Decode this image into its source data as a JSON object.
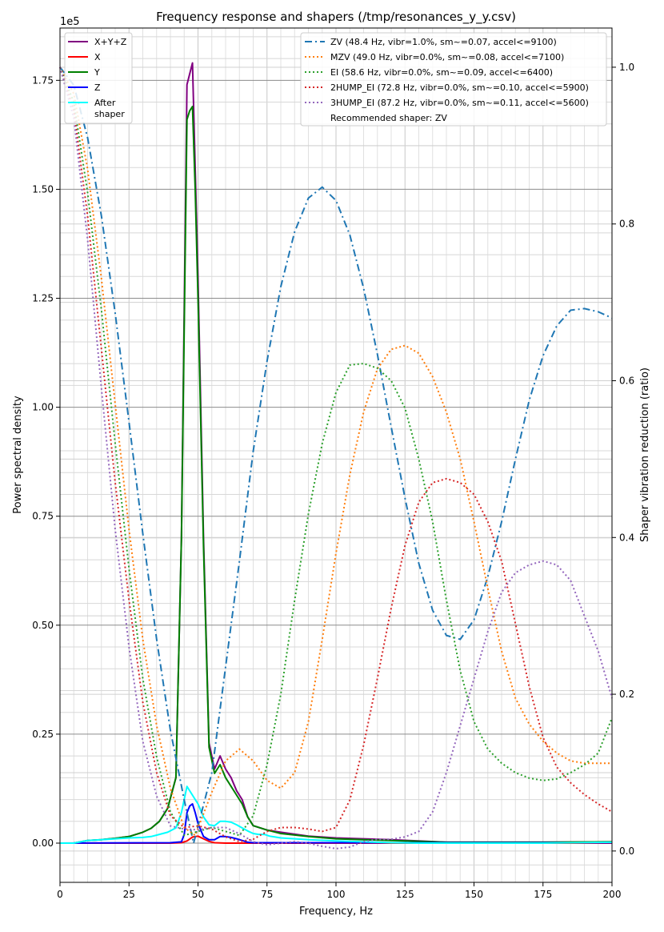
{
  "chart_data": {
    "type": "line",
    "title": "Frequency response and shapers (/tmp/resonances_y_y.csv)",
    "xlabel": "Frequency, Hz",
    "ylabel_left": "Power spectral density",
    "ylabel_right": "Shaper vibration reduction (ratio)",
    "left_scale_label": "1e5",
    "xlim": [
      0,
      200
    ],
    "ylim_left": [
      -0.09,
      1.87
    ],
    "ylim_right": [
      -0.04,
      1.05
    ],
    "x_ticks": [
      0,
      25,
      50,
      75,
      100,
      125,
      150,
      175,
      200
    ],
    "x_tick_labels": [
      "0",
      "25",
      "50",
      "75",
      "100",
      "125",
      "150",
      "175",
      "200"
    ],
    "y_left_ticks": [
      0,
      0.25,
      0.5,
      0.75,
      1.0,
      1.25,
      1.5,
      1.75
    ],
    "y_left_tick_labels": [
      "0.00",
      "0.25",
      "0.50",
      "0.75",
      "1.00",
      "1.25",
      "1.50",
      "1.75"
    ],
    "y_right_ticks": [
      0,
      0.2,
      0.4,
      0.6,
      0.8,
      1.0
    ],
    "y_right_tick_labels": [
      "0.0",
      "0.2",
      "0.4",
      "0.6",
      "0.8",
      "1.0"
    ],
    "grid": true,
    "legend_left": {
      "placement": "top-left",
      "entries": [
        {
          "label": "X+Y+Z",
          "color": "#800080"
        },
        {
          "label": "X",
          "color": "#ff0000"
        },
        {
          "label": "Y",
          "color": "#008000"
        },
        {
          "label": "Z",
          "color": "#0000ff"
        },
        {
          "label": "After\nshaper",
          "color": "#00ffff"
        }
      ]
    },
    "legend_right": {
      "placement": "top-right",
      "entries": [
        {
          "label": "ZV (48.4 Hz, vibr=1.0%, sm~=0.07, accel<=9100)",
          "color": "#1f77b4",
          "dash": "dashdot"
        },
        {
          "label": "MZV (49.0 Hz, vibr=0.0%, sm~=0.08, accel<=7100)",
          "color": "#ff7f0e",
          "dash": "dotted"
        },
        {
          "label": "EI (58.6 Hz, vibr=0.0%, sm~=0.09, accel<=6400)",
          "color": "#2ca02c",
          "dash": "dotted"
        },
        {
          "label": "2HUMP_EI (72.8 Hz, vibr=0.0%, sm~=0.10, accel<=5900)",
          "color": "#d62728",
          "dash": "dotted"
        },
        {
          "label": "3HUMP_EI (87.2 Hz, vibr=0.0%, sm~=0.11, accel<=5600)",
          "color": "#9467bd",
          "dash": "dotted"
        }
      ],
      "note": "Recommended shaper: ZV"
    },
    "psd_series": [
      {
        "name": "X+Y+Z",
        "color": "#800080",
        "x": [
          0,
          5,
          10,
          15,
          20,
          25,
          30,
          33,
          36,
          39,
          42,
          44,
          46,
          48,
          50,
          52,
          54,
          56,
          58,
          60,
          62,
          64,
          66,
          68,
          70,
          75,
          80,
          90,
          100,
          110,
          120,
          130,
          140,
          150,
          175,
          200
        ],
        "values": [
          0.0,
          0.0,
          0.006,
          0.008,
          0.011,
          0.015,
          0.025,
          0.034,
          0.05,
          0.08,
          0.15,
          0.7,
          1.74,
          1.79,
          1.3,
          0.7,
          0.23,
          0.17,
          0.2,
          0.17,
          0.15,
          0.12,
          0.1,
          0.06,
          0.04,
          0.03,
          0.025,
          0.016,
          0.012,
          0.01,
          0.008,
          0.005,
          0.002,
          0.002,
          0.002,
          0.003
        ]
      },
      {
        "name": "X",
        "color": "#ff0000",
        "x": [
          0,
          40,
          44,
          46,
          48,
          50,
          52,
          54,
          56,
          60,
          65,
          70,
          200
        ],
        "values": [
          0.0,
          0.0,
          0.001,
          0.005,
          0.014,
          0.016,
          0.01,
          0.004,
          0.001,
          0.0,
          0.0,
          0.0,
          0.0
        ]
      },
      {
        "name": "Y",
        "color": "#008000",
        "x": [
          0,
          5,
          10,
          15,
          20,
          25,
          30,
          33,
          36,
          39,
          42,
          44,
          46,
          47,
          48,
          49,
          50,
          52,
          54,
          56,
          58,
          60,
          62,
          64,
          66,
          68,
          70,
          75,
          80,
          90,
          100,
          110,
          120,
          130,
          140,
          150,
          175,
          200
        ],
        "values": [
          0.0,
          0.0,
          0.006,
          0.008,
          0.011,
          0.015,
          0.025,
          0.034,
          0.05,
          0.08,
          0.15,
          0.7,
          1.66,
          1.68,
          1.69,
          1.5,
          1.25,
          0.68,
          0.22,
          0.16,
          0.18,
          0.15,
          0.13,
          0.11,
          0.09,
          0.06,
          0.04,
          0.03,
          0.022,
          0.015,
          0.01,
          0.008,
          0.006,
          0.004,
          0.002,
          0.002,
          0.002,
          0.003
        ]
      },
      {
        "name": "Z",
        "color": "#0000ff",
        "x": [
          0,
          40,
          44,
          45,
          46,
          47,
          48,
          49,
          50,
          52,
          54,
          56,
          58,
          60,
          62,
          64,
          66,
          68,
          70,
          75,
          80,
          90,
          100,
          110,
          120,
          140,
          200
        ],
        "values": [
          0.0,
          0.001,
          0.003,
          0.02,
          0.07,
          0.085,
          0.09,
          0.07,
          0.045,
          0.015,
          0.008,
          0.008,
          0.015,
          0.015,
          0.013,
          0.01,
          0.006,
          0.002,
          0.001,
          0.001,
          0.001,
          0.001,
          0.001,
          0.001,
          0.001,
          0.001,
          0.001
        ]
      },
      {
        "name": "After shaper",
        "color": "#00ffff",
        "x": [
          0,
          5,
          10,
          15,
          20,
          25,
          30,
          33,
          36,
          39,
          42,
          44,
          46,
          48,
          50,
          52,
          54,
          56,
          58,
          60,
          62,
          64,
          66,
          68,
          70,
          72,
          74,
          76,
          78,
          80,
          90,
          100,
          110,
          120,
          130,
          140,
          150,
          175,
          200
        ],
        "values": [
          0.0,
          0.0,
          0.006,
          0.008,
          0.01,
          0.012,
          0.013,
          0.015,
          0.02,
          0.025,
          0.035,
          0.07,
          0.13,
          0.11,
          0.09,
          0.06,
          0.042,
          0.04,
          0.05,
          0.05,
          0.048,
          0.042,
          0.035,
          0.028,
          0.022,
          0.02,
          0.02,
          0.016,
          0.014,
          0.012,
          0.008,
          0.005,
          0.003,
          0.001,
          0.0,
          0.0,
          0.0,
          0.0,
          0.002
        ]
      }
    ],
    "shaper_series": [
      {
        "name": "ZV",
        "color": "#1f77b4",
        "dash": "dashdot",
        "x": [
          0,
          5,
          10,
          15,
          20,
          25,
          30,
          35,
          40,
          45,
          48.4,
          55,
          60,
          65,
          70,
          75,
          80,
          85,
          90,
          95,
          100,
          105,
          110,
          115,
          120,
          125,
          130,
          135,
          140,
          145,
          150,
          155,
          160,
          165,
          170,
          175,
          180,
          185,
          190,
          195,
          200
        ],
        "values": [
          1.0,
          0.977,
          0.91,
          0.81,
          0.686,
          0.547,
          0.405,
          0.27,
          0.154,
          0.065,
          0.01,
          0.1,
          0.235,
          0.37,
          0.51,
          0.625,
          0.72,
          0.79,
          0.833,
          0.847,
          0.83,
          0.786,
          0.718,
          0.634,
          0.541,
          0.45,
          0.367,
          0.307,
          0.275,
          0.27,
          0.295,
          0.35,
          0.42,
          0.5,
          0.575,
          0.632,
          0.67,
          0.69,
          0.692,
          0.688,
          0.68
        ]
      },
      {
        "name": "MZV",
        "color": "#ff7f0e",
        "dash": "dotted",
        "x": [
          0,
          5,
          10,
          15,
          20,
          25,
          30,
          35,
          40,
          45,
          49,
          55,
          60,
          65,
          70,
          75,
          80,
          85,
          90,
          95,
          100,
          105,
          110,
          115,
          120,
          125,
          130,
          135,
          140,
          145,
          150,
          155,
          160,
          165,
          170,
          175,
          180,
          185,
          190,
          195,
          200
        ],
        "values": [
          1.0,
          0.966,
          0.87,
          0.73,
          0.57,
          0.41,
          0.27,
          0.16,
          0.08,
          0.03,
          0.02,
          0.075,
          0.115,
          0.13,
          0.115,
          0.09,
          0.08,
          0.1,
          0.165,
          0.27,
          0.38,
          0.48,
          0.56,
          0.615,
          0.64,
          0.645,
          0.635,
          0.605,
          0.56,
          0.5,
          0.42,
          0.335,
          0.255,
          0.195,
          0.162,
          0.14,
          0.125,
          0.115,
          0.112,
          0.112,
          0.112
        ]
      },
      {
        "name": "EI",
        "color": "#2ca02c",
        "dash": "dotted",
        "x": [
          0,
          5,
          10,
          15,
          20,
          25,
          30,
          35,
          40,
          45,
          50,
          55,
          60,
          65,
          70,
          75,
          80,
          85,
          90,
          95,
          100,
          105,
          110,
          115,
          120,
          125,
          130,
          135,
          140,
          145,
          150,
          155,
          160,
          165,
          170,
          175,
          180,
          185,
          190,
          195,
          200
        ],
        "values": [
          1.0,
          0.955,
          0.84,
          0.69,
          0.52,
          0.36,
          0.22,
          0.12,
          0.05,
          0.02,
          0.025,
          0.03,
          0.025,
          0.02,
          0.045,
          0.11,
          0.2,
          0.32,
          0.43,
          0.52,
          0.585,
          0.62,
          0.622,
          0.616,
          0.6,
          0.565,
          0.5,
          0.42,
          0.32,
          0.23,
          0.165,
          0.13,
          0.112,
          0.1,
          0.093,
          0.09,
          0.092,
          0.1,
          0.11,
          0.125,
          0.17
        ]
      },
      {
        "name": "2HUMP_EI",
        "color": "#d62728",
        "dash": "dotted",
        "x": [
          0,
          5,
          10,
          15,
          20,
          25,
          30,
          35,
          40,
          45,
          50,
          55,
          60,
          65,
          70,
          75,
          80,
          85,
          90,
          95,
          100,
          105,
          110,
          115,
          120,
          125,
          130,
          135,
          140,
          145,
          150,
          155,
          160,
          165,
          170,
          175,
          180,
          185,
          190,
          195,
          200
        ],
        "values": [
          1.0,
          0.945,
          0.81,
          0.64,
          0.47,
          0.32,
          0.19,
          0.1,
          0.045,
          0.03,
          0.032,
          0.028,
          0.018,
          0.012,
          0.015,
          0.025,
          0.03,
          0.03,
          0.028,
          0.025,
          0.03,
          0.065,
          0.135,
          0.22,
          0.31,
          0.39,
          0.445,
          0.47,
          0.475,
          0.47,
          0.455,
          0.42,
          0.37,
          0.29,
          0.21,
          0.145,
          0.107,
          0.087,
          0.072,
          0.06,
          0.05
        ]
      },
      {
        "name": "3HUMP_EI",
        "color": "#9467bd",
        "dash": "dotted",
        "x": [
          0,
          5,
          10,
          15,
          20,
          25,
          30,
          35,
          40,
          45,
          50,
          55,
          60,
          65,
          70,
          75,
          80,
          85,
          90,
          95,
          100,
          105,
          110,
          115,
          120,
          125,
          130,
          135,
          140,
          145,
          150,
          155,
          160,
          165,
          170,
          175,
          180,
          185,
          190,
          195,
          200
        ],
        "values": [
          1.0,
          0.935,
          0.78,
          0.59,
          0.41,
          0.26,
          0.14,
          0.07,
          0.032,
          0.028,
          0.027,
          0.03,
          0.03,
          0.022,
          0.012,
          0.008,
          0.01,
          0.012,
          0.01,
          0.006,
          0.003,
          0.005,
          0.012,
          0.015,
          0.015,
          0.018,
          0.025,
          0.05,
          0.1,
          0.16,
          0.22,
          0.28,
          0.33,
          0.355,
          0.365,
          0.37,
          0.365,
          0.345,
          0.3,
          0.255,
          0.195
        ]
      }
    ]
  }
}
